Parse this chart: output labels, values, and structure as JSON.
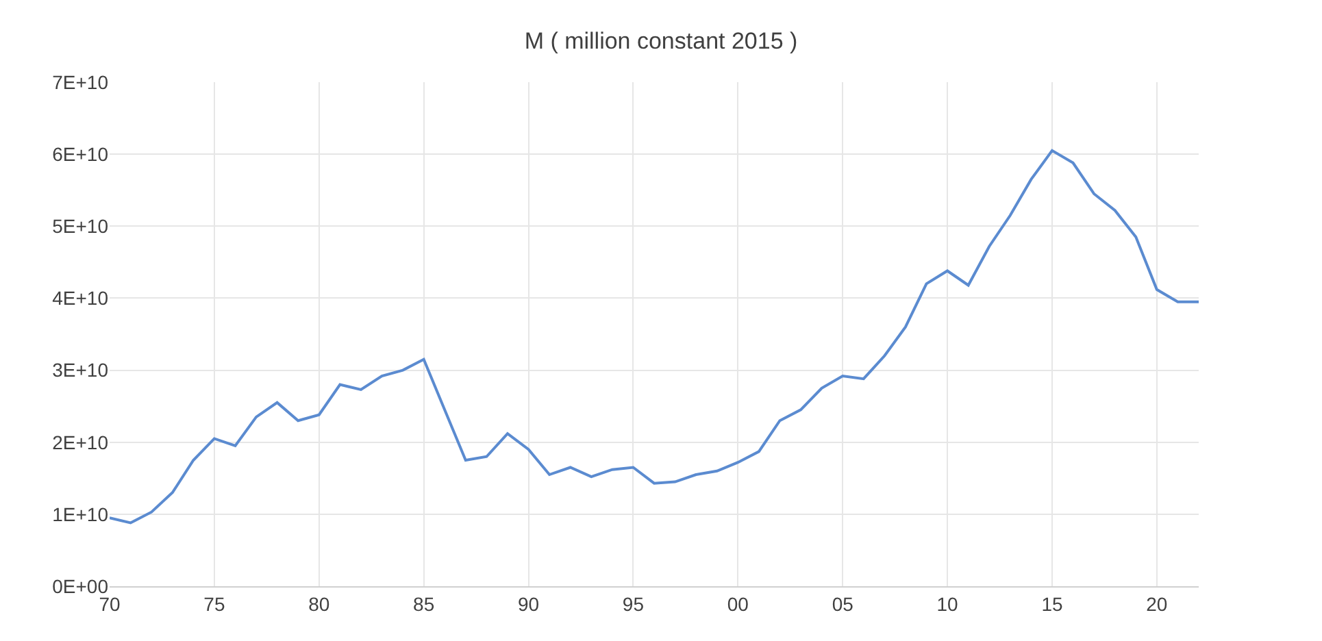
{
  "chart_data": {
    "type": "line",
    "title": "M ( million constant 2015 )",
    "x": [
      1970,
      1971,
      1972,
      1973,
      1974,
      1975,
      1976,
      1977,
      1978,
      1979,
      1980,
      1981,
      1982,
      1983,
      1984,
      1985,
      1986,
      1987,
      1988,
      1989,
      1990,
      1991,
      1992,
      1993,
      1994,
      1995,
      1996,
      1997,
      1998,
      1999,
      2000,
      2001,
      2002,
      2003,
      2004,
      2005,
      2006,
      2007,
      2008,
      2009,
      2010,
      2011,
      2012,
      2013,
      2014,
      2015,
      2016,
      2017,
      2018,
      2019,
      2020,
      2021,
      2022
    ],
    "series": [
      {
        "color": "#5b8bd0",
        "values": [
          9500000000.0,
          8800000000.0,
          10300000000.0,
          13000000000.0,
          17500000000.0,
          20500000000.0,
          19500000000.0,
          23500000000.0,
          25500000000.0,
          23000000000.0,
          23800000000.0,
          28000000000.0,
          27300000000.0,
          29200000000.0,
          30000000000.0,
          31500000000.0,
          24500000000.0,
          17500000000.0,
          18000000000.0,
          21200000000.0,
          19000000000.0,
          15500000000.0,
          16500000000.0,
          15200000000.0,
          16200000000.0,
          16500000000.0,
          14300000000.0,
          14500000000.0,
          15500000000.0,
          16000000000.0,
          17200000000.0,
          18700000000.0,
          23000000000.0,
          24500000000.0,
          27500000000.0,
          29200000000.0,
          28800000000.0,
          32000000000.0,
          36000000000.0,
          42000000000.0,
          43800000000.0,
          41800000000.0,
          47200000000.0,
          51500000000.0,
          56500000000.0,
          60500000000.0,
          58800000000.0,
          54500000000.0,
          52200000000.0,
          48500000000.0,
          41200000000.0,
          39500000000.0,
          39500000000.0
        ]
      }
    ],
    "xlim": [
      1970,
      2022
    ],
    "xticks": [
      {
        "value": 1970,
        "label": "70"
      },
      {
        "value": 1975,
        "label": "75"
      },
      {
        "value": 1980,
        "label": "80"
      },
      {
        "value": 1985,
        "label": "85"
      },
      {
        "value": 1990,
        "label": "90"
      },
      {
        "value": 1995,
        "label": "95"
      },
      {
        "value": 2000,
        "label": "00"
      },
      {
        "value": 2005,
        "label": "05"
      },
      {
        "value": 2010,
        "label": "10"
      },
      {
        "value": 2015,
        "label": "15"
      },
      {
        "value": 2020,
        "label": "20"
      }
    ],
    "ylim": [
      0,
      70000000000.0
    ],
    "yticks": [
      {
        "value": 0,
        "label": "0E+00"
      },
      {
        "value": 10000000000.0,
        "label": "1E+10"
      },
      {
        "value": 20000000000.0,
        "label": "2E+10"
      },
      {
        "value": 30000000000.0,
        "label": "3E+10"
      },
      {
        "value": 40000000000.0,
        "label": "4E+10"
      },
      {
        "value": 50000000000.0,
        "label": "5E+10"
      },
      {
        "value": 60000000000.0,
        "label": "6E+10"
      },
      {
        "value": 70000000000.0,
        "label": "7E+10"
      }
    ],
    "grid": true,
    "legend": false,
    "marker": "none",
    "line_style": "solid"
  }
}
